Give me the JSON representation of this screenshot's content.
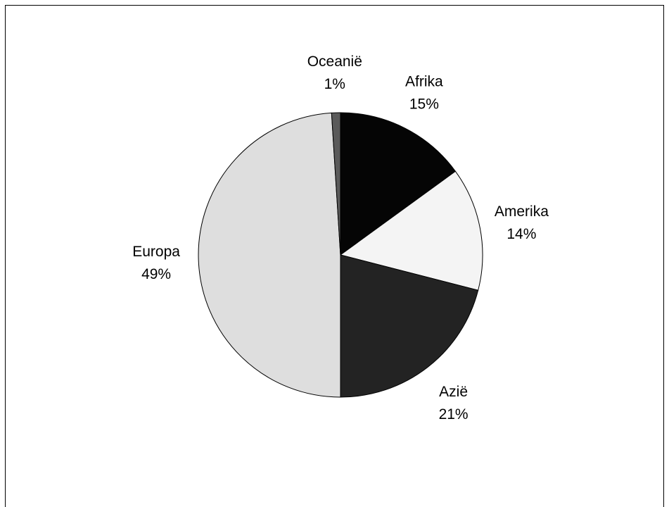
{
  "chart_data": {
    "type": "pie",
    "title": "",
    "slices": [
      {
        "label": "Afrika",
        "value": 15,
        "display": "15%",
        "color": "#050505"
      },
      {
        "label": "Amerika",
        "value": 14,
        "display": "14%",
        "color": "#f4f4f4"
      },
      {
        "label": "Azië",
        "value": 21,
        "display": "21%",
        "color": "#232323"
      },
      {
        "label": "Europa",
        "value": 49,
        "display": "49%",
        "color": "#dedede"
      },
      {
        "label": "Oceanië",
        "value": 1,
        "display": "1%",
        "color": "#5a5a5a"
      }
    ],
    "start": "12 o'clock",
    "direction": "clockwise",
    "legend": "none",
    "labels": "outside, category name above percentage"
  }
}
